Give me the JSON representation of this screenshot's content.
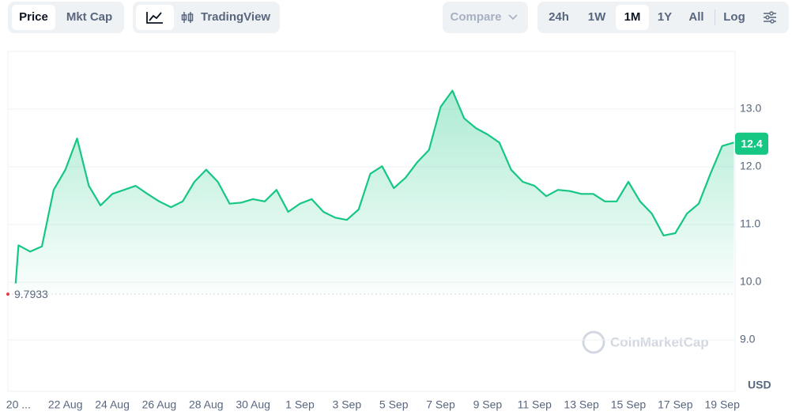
{
  "toolbar": {
    "view_tabs": [
      "Price",
      "Mkt Cap"
    ],
    "chart_tools": [
      "TradingView"
    ],
    "compare": "Compare",
    "ranges": [
      "24h",
      "1W",
      "1M",
      "1Y",
      "All"
    ],
    "scale_toggle": "Log"
  },
  "watermark": "CoinMarketCap",
  "chart_data": {
    "type": "line",
    "color": "#16c784",
    "x": [
      -0.12,
      0,
      0.5,
      1,
      1.5,
      2,
      2.5,
      3,
      3.5,
      4,
      4.5,
      5,
      5.5,
      6,
      6.5,
      7,
      7.5,
      8,
      8.5,
      9,
      9.5,
      10,
      10.5,
      11,
      11.5,
      12,
      12.5,
      13,
      13.5,
      14,
      14.5,
      15,
      15.5,
      16,
      16.5,
      17,
      17.5,
      18,
      18.5,
      19,
      19.5,
      20,
      20.5,
      21,
      21.5,
      22,
      22.5,
      23,
      23.5,
      24,
      24.5,
      25,
      25.5,
      26,
      26.5,
      27,
      27.5,
      28,
      28.5,
      29,
      29.5,
      30,
      30.5
    ],
    "values": [
      9.98,
      10.64,
      10.53,
      10.62,
      11.6,
      11.95,
      12.49,
      11.67,
      11.33,
      11.53,
      11.6,
      11.67,
      11.53,
      11.4,
      11.3,
      11.4,
      11.74,
      11.95,
      11.74,
      11.36,
      11.38,
      11.44,
      11.4,
      11.6,
      11.22,
      11.36,
      11.44,
      11.22,
      11.12,
      11.08,
      11.26,
      11.88,
      12.01,
      11.63,
      11.81,
      12.08,
      12.29,
      13.04,
      13.32,
      12.84,
      12.67,
      12.56,
      12.42,
      11.95,
      11.74,
      11.67,
      11.49,
      11.6,
      11.58,
      11.53,
      11.53,
      11.4,
      11.4,
      11.74,
      11.4,
      11.19,
      10.81,
      10.85,
      11.19,
      11.36,
      11.88,
      12.36,
      12.42
    ],
    "xlim": [
      -0.45,
      30.55
    ],
    "xticks": [
      {
        "value": 0,
        "label": "20 ..."
      },
      {
        "value": 2,
        "label": "22 Aug"
      },
      {
        "value": 4,
        "label": "24 Aug"
      },
      {
        "value": 6,
        "label": "26 Aug"
      },
      {
        "value": 8,
        "label": "28 Aug"
      },
      {
        "value": 10,
        "label": "30 Aug"
      },
      {
        "value": 12,
        "label": "1 Sep"
      },
      {
        "value": 14,
        "label": "3 Sep"
      },
      {
        "value": 16,
        "label": "5 Sep"
      },
      {
        "value": 18,
        "label": "7 Sep"
      },
      {
        "value": 20,
        "label": "9 Sep"
      },
      {
        "value": 22,
        "label": "11 Sep"
      },
      {
        "value": 24,
        "label": "13 Sep"
      },
      {
        "value": 26,
        "label": "15 Sep"
      },
      {
        "value": 28,
        "label": "17 Sep"
      },
      {
        "value": 30,
        "label": "19 Sep"
      }
    ],
    "ylim": [
      8.11,
      14.0
    ],
    "yticks": [
      {
        "value": 9,
        "label": "9.0"
      },
      {
        "value": 10,
        "label": "10.0"
      },
      {
        "value": 11,
        "label": "11.0"
      },
      {
        "value": 12,
        "label": "12.0"
      },
      {
        "value": 13,
        "label": "13.0"
      }
    ],
    "ylabel": "USD",
    "open_price": 9.7933,
    "last_price": 12.4,
    "grid": true
  }
}
